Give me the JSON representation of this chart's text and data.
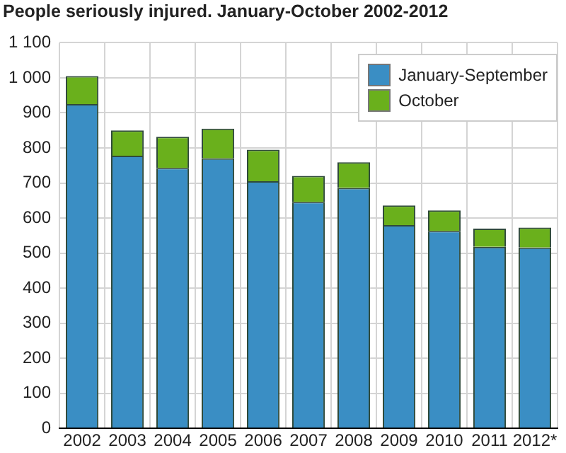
{
  "chart_data": {
    "type": "bar",
    "title": "People seriously injured. January-October 2002-2012",
    "categories": [
      "2002",
      "2003",
      "2004",
      "2005",
      "2006",
      "2007",
      "2008",
      "2009",
      "2010",
      "2011",
      "2012*"
    ],
    "series": [
      {
        "name": "January-September",
        "color": "#3a8ec4",
        "values": [
          925,
          778,
          743,
          770,
          705,
          646,
          686,
          580,
          563,
          518,
          516
        ]
      },
      {
        "name": "October",
        "color": "#6ab01c",
        "values": [
          80,
          72,
          89,
          85,
          90,
          74,
          73,
          56,
          59,
          52,
          57
        ]
      }
    ],
    "stacked": true,
    "ylim": [
      0,
      1100
    ],
    "yticks": [
      0,
      100,
      200,
      300,
      400,
      500,
      600,
      700,
      800,
      900,
      {
        "value": 1000,
        "label": "1 000"
      },
      {
        "value": 1100,
        "label": "1 100"
      }
    ],
    "grid": true,
    "legend": "top right"
  }
}
